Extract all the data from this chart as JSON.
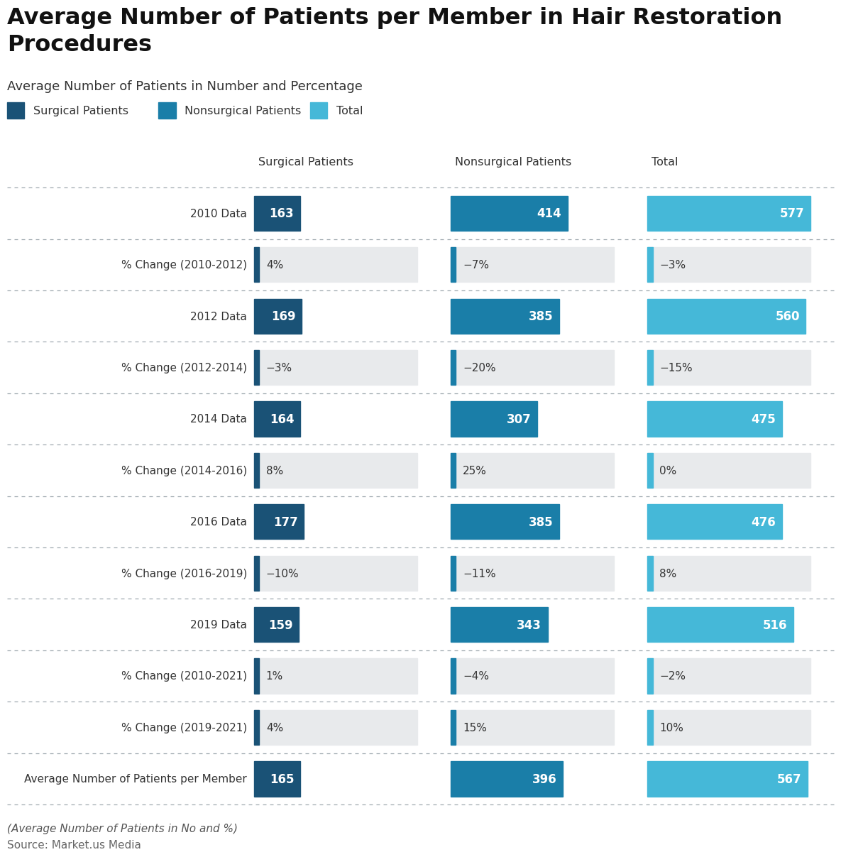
{
  "title": "Average Number of Patients per Member in Hair Restoration\nProcedures",
  "subtitle": "Average Number of Patients in Number and Percentage",
  "footer_note": "(Average Number of Patients in No and %)",
  "footer_source": "Source: Market.us Media",
  "legend_labels": [
    "Surgical Patients",
    "Nonsurgical Patients",
    "Total"
  ],
  "col_headers": [
    "Surgical Patients",
    "Nonsurgical Patients",
    "Total"
  ],
  "rows": [
    {
      "label": "2010 Data",
      "type": "data",
      "values": [
        163,
        414,
        577
      ],
      "labels": [
        "163",
        "414",
        "577"
      ]
    },
    {
      "label": "% Change (2010-2012)",
      "type": "pct",
      "values": [
        4,
        -7,
        -3
      ],
      "labels": [
        "4%",
        "−7%",
        "−3%"
      ]
    },
    {
      "label": "2012 Data",
      "type": "data",
      "values": [
        169,
        385,
        560
      ],
      "labels": [
        "169",
        "385",
        "560"
      ]
    },
    {
      "label": "% Change (2012-2014)",
      "type": "pct",
      "values": [
        -3,
        -20,
        -15
      ],
      "labels": [
        "−3%",
        "−20%",
        "−15%"
      ]
    },
    {
      "label": "2014 Data",
      "type": "data",
      "values": [
        164,
        307,
        475
      ],
      "labels": [
        "164",
        "307",
        "475"
      ]
    },
    {
      "label": "% Change (2014-2016)",
      "type": "pct",
      "values": [
        8,
        25,
        0
      ],
      "labels": [
        "8%",
        "25%",
        "0%"
      ]
    },
    {
      "label": "2016 Data",
      "type": "data",
      "values": [
        177,
        385,
        476
      ],
      "labels": [
        "177",
        "385",
        "476"
      ]
    },
    {
      "label": "% Change (2016-2019)",
      "type": "pct",
      "values": [
        -10,
        -11,
        8
      ],
      "labels": [
        "−10%",
        "−11%",
        "8%"
      ]
    },
    {
      "label": "2019 Data",
      "type": "data",
      "values": [
        159,
        343,
        516
      ],
      "labels": [
        "159",
        "343",
        "516"
      ]
    },
    {
      "label": "% Change (2010-2021)",
      "type": "pct",
      "values": [
        1,
        -4,
        -2
      ],
      "labels": [
        "1%",
        "−4%",
        "−2%"
      ]
    },
    {
      "label": "% Change (2019-2021)",
      "type": "pct",
      "values": [
        4,
        15,
        10
      ],
      "labels": [
        "4%",
        "15%",
        "10%"
      ]
    },
    {
      "label": "Average Number of Patients per Member",
      "type": "data",
      "values": [
        165,
        396,
        567
      ],
      "labels": [
        "165",
        "396",
        "567"
      ]
    }
  ],
  "colors": {
    "surgical": "#1a5276",
    "nonsurgical": "#1a7ea8",
    "total": "#45b8d8",
    "pct_bg": "#e8eaec",
    "background": "#ffffff",
    "separator": "#a0aab0"
  },
  "max_data_value": 577,
  "max_pct_value": 25,
  "col_max": [
    177,
    414,
    577
  ]
}
